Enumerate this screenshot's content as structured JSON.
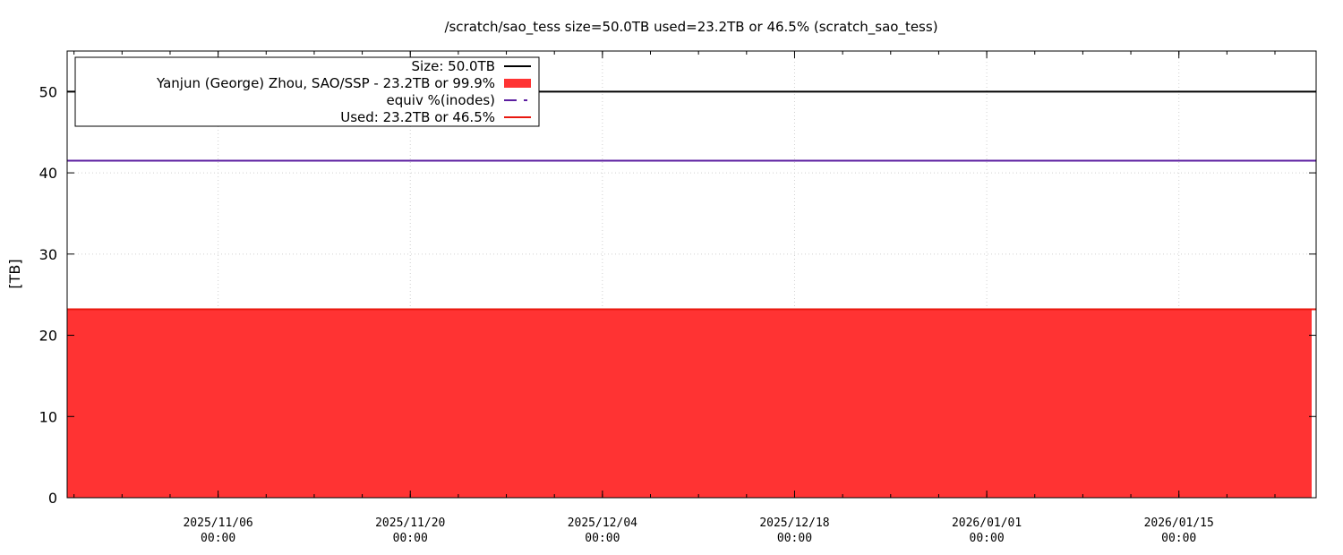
{
  "chart_data": {
    "type": "area",
    "title": "/scratch/sao_tess size=50.0TB used=23.2TB or 46.5% (scratch_sao_tess)",
    "xlabel": "",
    "ylabel": "[TB]",
    "xlim": [
      "2025-10-26",
      "2026-01-25"
    ],
    "ylim": [
      0,
      55
    ],
    "yticks": [
      0,
      10,
      20,
      30,
      40,
      50
    ],
    "xticks": [
      {
        "date": "2025-11-06",
        "label_date": "2025/11/06",
        "label_time": "00:00"
      },
      {
        "date": "2025-11-20",
        "label_date": "2025/11/20",
        "label_time": "00:00"
      },
      {
        "date": "2025-12-04",
        "label_date": "2025/12/04",
        "label_time": "00:00"
      },
      {
        "date": "2025-12-18",
        "label_date": "2025/12/18",
        "label_time": "00:00"
      },
      {
        "date": "2026-01-01",
        "label_date": "2026/01/01",
        "label_time": "00:00"
      },
      {
        "date": "2026-01-15",
        "label_date": "2026/01/15",
        "label_time": "00:00"
      }
    ],
    "grid": true,
    "legend_position": "top-left",
    "series": [
      {
        "name": "Size: 50.0TB",
        "kind": "line",
        "color": "#000000",
        "x": [
          "2025-10-26",
          "2026-01-25"
        ],
        "y": [
          50.0,
          50.0
        ]
      },
      {
        "name": "Yanjun (George) Zhou, SAO/SSP - 23.2TB or 99.9%",
        "kind": "area",
        "color": "#ff3333",
        "x": [
          "2025-10-26",
          "2026-01-25"
        ],
        "y": [
          23.2,
          23.2
        ]
      },
      {
        "name": "equiv %(inodes)",
        "kind": "dashed-line",
        "color": "#5b1ea0",
        "x": [
          "2025-10-26",
          "2026-01-25"
        ],
        "y": [
          41.5,
          41.5
        ]
      },
      {
        "name": "Used: 23.2TB or 46.5%",
        "kind": "line",
        "color": "#e8180f",
        "x": [
          "2025-10-26",
          "2026-01-25"
        ],
        "y": [
          23.2,
          23.2
        ]
      }
    ]
  }
}
